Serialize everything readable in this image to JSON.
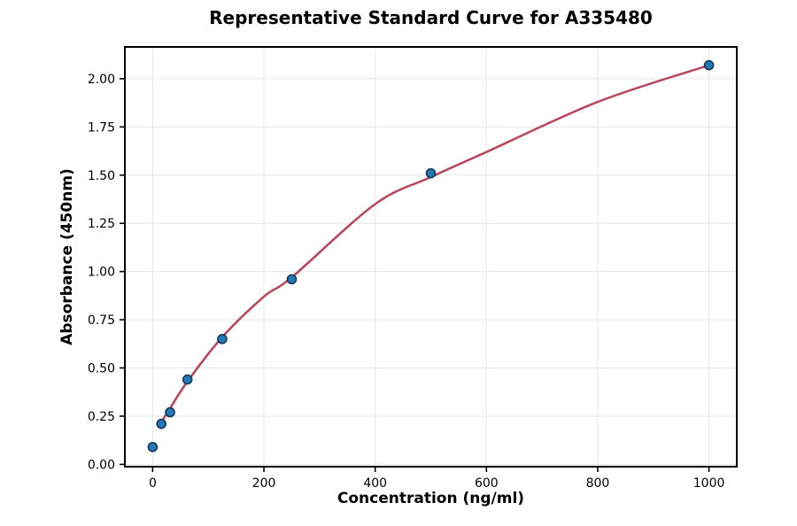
{
  "chart_data": {
    "type": "scatter",
    "title": "Representative Standard Curve for A335480",
    "xlabel": "Concentration (ng/ml)",
    "ylabel": "Absorbance (450nm)",
    "xlim": [
      -50,
      1050
    ],
    "ylim": [
      -0.012,
      2.165
    ],
    "x_ticks": [
      0,
      200,
      400,
      600,
      800,
      1000
    ],
    "y_ticks": [
      0.0,
      0.25,
      0.5,
      0.75,
      1.0,
      1.25,
      1.5,
      1.75,
      2.0
    ],
    "grid": true,
    "legend_position": "none",
    "series": [
      {
        "name": "standard-points",
        "type": "scatter",
        "x": [
          0,
          15.625,
          31.25,
          62.5,
          125,
          250,
          500,
          1000
        ],
        "y": [
          0.09,
          0.21,
          0.27,
          0.44,
          0.65,
          0.96,
          1.51,
          2.07
        ],
        "marker_color": "#2478b6",
        "marker_edge_color": "#16395a"
      },
      {
        "name": "fitted-curve",
        "type": "line",
        "x": [
          15.625,
          31.25,
          62.5,
          125,
          200,
          250,
          400,
          500,
          600,
          800,
          1000
        ],
        "y": [
          0.22,
          0.29,
          0.43,
          0.66,
          0.87,
          0.97,
          1.35,
          1.49,
          1.62,
          1.88,
          2.07
        ],
        "color": "#b8495e"
      }
    ]
  },
  "style": {
    "background": "#ffffff",
    "grid_color": "#e7e7e7",
    "spine_color": "#000000",
    "tick_color": "#000000",
    "text_color": "#000000"
  }
}
